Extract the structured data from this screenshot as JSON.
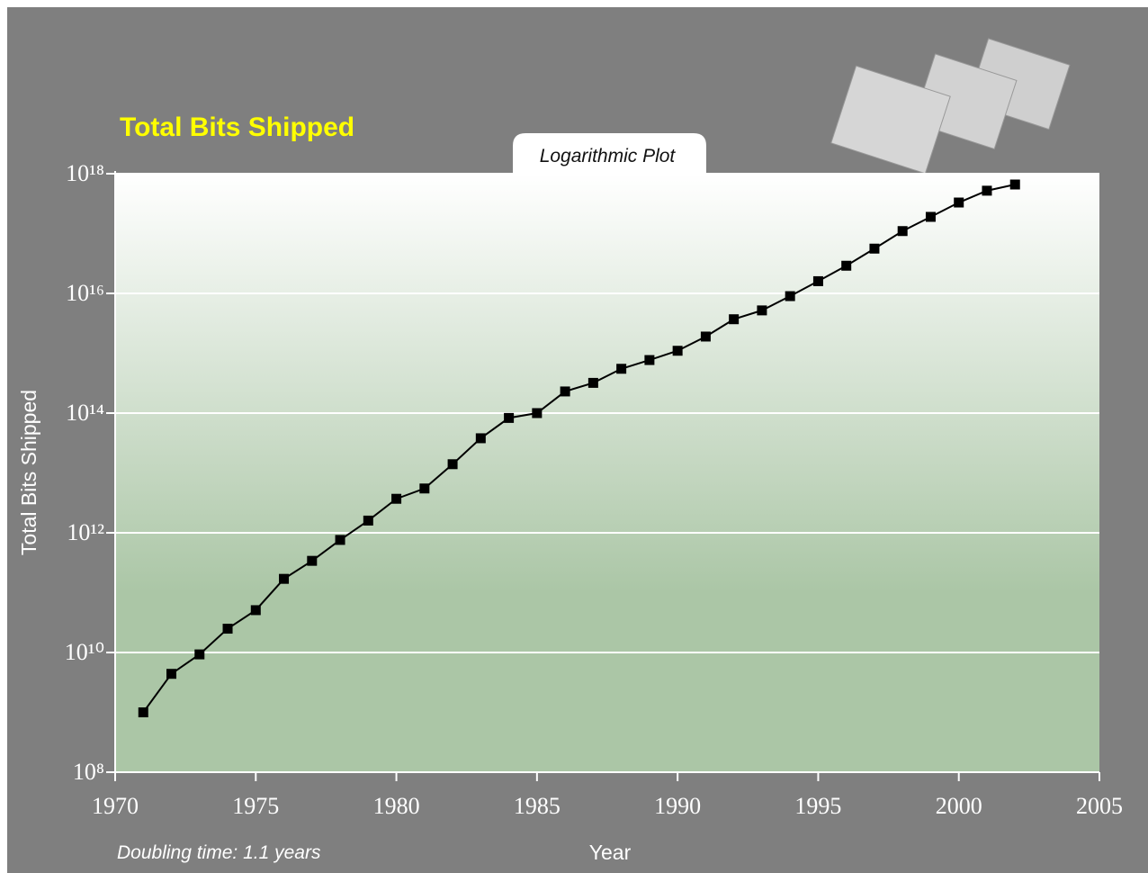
{
  "chart_data": {
    "type": "line",
    "title": "Total Bits Shipped",
    "subtitle": "Logarithmic Plot",
    "xlabel": "Year",
    "ylabel": "Total Bits Shipped",
    "annotation": "Doubling time: 1.1 years",
    "log_y": true,
    "grid": true,
    "x": [
      1971,
      1972,
      1973,
      1974,
      1975,
      1976,
      1977,
      1978,
      1979,
      1980,
      1981,
      1982,
      1983,
      1984,
      1985,
      1986,
      1987,
      1988,
      1989,
      1990,
      1991,
      1992,
      1993,
      1994,
      1995,
      1996,
      1997,
      1998,
      1999,
      2000,
      2001,
      2002
    ],
    "series": [
      {
        "name": "Total Bits Shipped",
        "color": "#000000",
        "values": [
          1000000000.0,
          4400000000.0,
          9300000000.0,
          25000000000.0,
          51000000000.0,
          170000000000.0,
          340000000000.0,
          760000000000.0,
          1600000000000.0,
          3700000000000.0,
          5500000000000.0,
          14000000000000.0,
          38000000000000.0,
          83000000000000.0,
          100000000000000.0,
          230000000000000.0,
          320000000000000.0,
          550000000000000.0,
          770000000000000.0,
          1100000000000000.0,
          1900000000000000.0,
          3700000000000000.0,
          5200000000000000.0,
          9000000000000000.0,
          1.6e+16,
          2.9e+16,
          5.6e+16,
          1.1e+17,
          1.9e+17,
          3.3e+17,
          5.2e+17,
          6.6e+17
        ]
      }
    ],
    "xlim": [
      1970,
      2005
    ],
    "xticks": [
      1970,
      1975,
      1980,
      1985,
      1990,
      1995,
      2000,
      2005
    ],
    "ylim": [
      100000000.0,
      1e+18
    ],
    "yticks": [
      {
        "value": 100000000.0,
        "label": "10⁸"
      },
      {
        "value": 10000000000.0,
        "label": "10¹⁰"
      },
      {
        "value": 1000000000000.0,
        "label": "10¹²"
      },
      {
        "value": 100000000000000.0,
        "label": "10¹⁴"
      },
      {
        "value": 1e+16,
        "label": "10¹⁶"
      },
      {
        "value": 1e+18,
        "label": "10¹⁸"
      }
    ]
  }
}
